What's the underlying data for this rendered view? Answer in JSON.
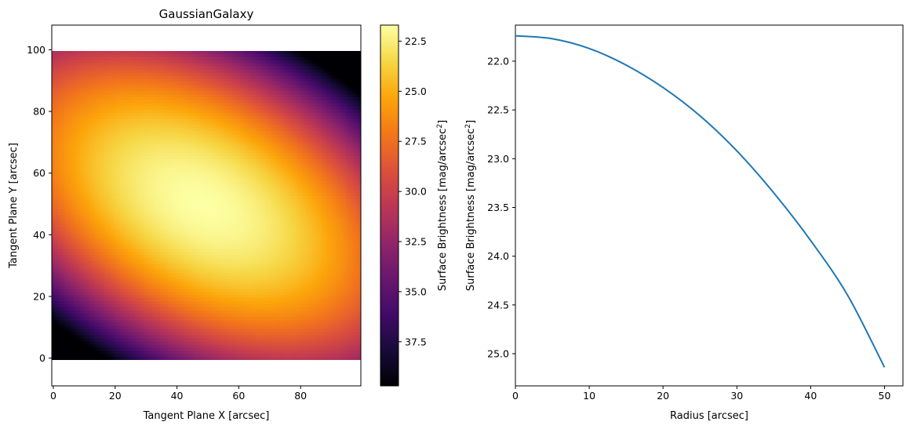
{
  "chart_data": [
    {
      "type": "heatmap",
      "title": "GaussianGalaxy",
      "xlabel": "Tangent Plane X [arcsec]",
      "ylabel": "Tangent Plane Y [arcsec]",
      "xlim": [
        -0.5,
        99.5
      ],
      "ylim": [
        -9,
        108
      ],
      "image_extent": {
        "x": [
          -0.5,
          99.5
        ],
        "y": [
          -0.5,
          99.5
        ]
      },
      "xticks": [
        0,
        20,
        40,
        60,
        80
      ],
      "yticks": [
        0,
        20,
        40,
        60,
        80,
        100
      ],
      "colormap": "inferno",
      "grid": false,
      "model": {
        "center": [
          48,
          50
        ],
        "semi_major_scale_arcsec": 105,
        "axis_ratio": 0.58,
        "position_angle_deg": 150,
        "peak_surface_brightness": 21.7
      },
      "colorbar": {
        "label": "Surface Brightness [mag/arcsec",
        "label_superscript": "2",
        "label_suffix": "]",
        "range": [
          21.7,
          39.7
        ],
        "inverted": true,
        "ticks": [
          "22.5",
          "25.0",
          "27.5",
          "30.0",
          "32.5",
          "35.0",
          "37.5"
        ]
      }
    },
    {
      "type": "line",
      "xlabel": "Radius [arcsec]",
      "ylabel": "Surface Brightness [mag/arcsec",
      "ylabel_superscript": "2",
      "ylabel_suffix": "]",
      "xlim": [
        0,
        52.5
      ],
      "ylim": [
        25.33,
        21.63
      ],
      "y_inverted": true,
      "xticks": [
        0,
        10,
        20,
        30,
        40,
        50
      ],
      "yticks": [
        "22.0",
        "22.5",
        "23.0",
        "23.5",
        "24.0",
        "24.5",
        "25.0"
      ],
      "grid": false,
      "series": [
        {
          "color": "#1f77b4",
          "x": [
            0,
            5,
            10,
            15,
            20,
            25,
            30,
            35,
            40,
            45,
            50
          ],
          "y": [
            21.74,
            21.77,
            21.87,
            22.04,
            22.27,
            22.56,
            22.92,
            23.35,
            23.84,
            24.4,
            25.14
          ]
        }
      ]
    }
  ]
}
